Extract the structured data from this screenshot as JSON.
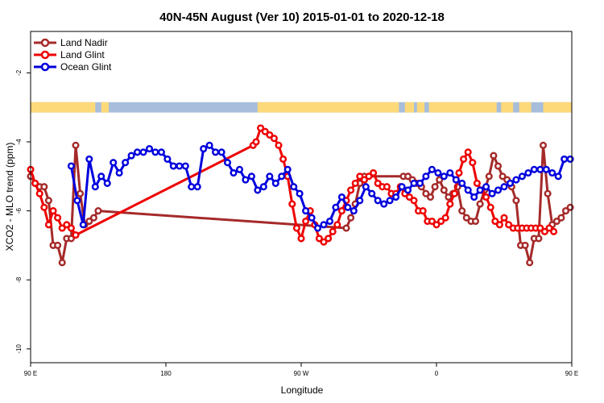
{
  "chart_data": {
    "type": "line",
    "title": "40N-45N August (Ver 10)   2015-01-01 to 2020-12-18",
    "xlabel": "Longitude",
    "ylabel": "XCO2 - MLO trend (ppm)",
    "xlim": [
      90,
      450
    ],
    "ylim": [
      -10.4,
      -0.8
    ],
    "x_ticks": [
      {
        "value": 90,
        "label": "90 E"
      },
      {
        "value": 180,
        "label": "180"
      },
      {
        "value": 270,
        "label": "90 W"
      },
      {
        "value": 360,
        "label": "0"
      },
      {
        "value": 450,
        "label": "90 E"
      },
      {
        "value": 540,
        "label": "180"
      }
    ],
    "y_ticks": [
      {
        "value": -2,
        "label": "-2"
      },
      {
        "value": -4,
        "label": "-4"
      },
      {
        "value": -6,
        "label": "-6"
      },
      {
        "value": -8,
        "label": "-8"
      },
      {
        "value": -10,
        "label": "-10"
      }
    ],
    "grid": false,
    "legend_position": "top-left",
    "land_mask_band": {
      "y_range": [
        -2.85,
        -3.15
      ],
      "ocean_color": "#a7bddb",
      "land_color": "#fdd97a",
      "land_x_intervals": [
        [
          90,
          133
        ],
        [
          137,
          142
        ],
        [
          241,
          335
        ],
        [
          339,
          345
        ],
        [
          347,
          352
        ],
        [
          355,
          400
        ],
        [
          403,
          411
        ],
        [
          415,
          423
        ],
        [
          431,
          451
        ]
      ]
    },
    "series": [
      {
        "name": "Land Nadir",
        "color": "#a52a2a",
        "x": [
          90,
          93,
          96,
          99,
          102,
          105,
          108,
          111,
          114,
          117,
          120,
          123,
          126,
          129,
          132,
          135,
          300,
          303,
          306,
          309,
          312,
          338,
          341,
          344,
          347,
          350,
          353,
          356,
          359,
          362,
          365,
          368,
          371,
          374,
          377,
          380,
          383,
          386,
          389,
          392,
          395,
          398,
          401,
          404,
          407,
          410,
          413,
          416,
          419,
          422,
          425,
          428,
          431,
          434,
          437,
          440,
          443,
          446,
          449
        ],
        "y": [
          -5.0,
          -5.2,
          -5.3,
          -5.3,
          -5.7,
          -7.0,
          -7.0,
          -7.5,
          -6.8,
          -6.8,
          -4.1,
          -5.5,
          -6.4,
          -6.3,
          -6.2,
          -6.0,
          -6.5,
          -6.2,
          -5.8,
          -5.2,
          -5.0,
          -5.0,
          -5.0,
          -5.1,
          -5.2,
          -5.3,
          -5.5,
          -5.6,
          -5.3,
          -5.1,
          -5.4,
          -5.6,
          -5.5,
          -5.3,
          -6.0,
          -6.2,
          -6.3,
          -6.3,
          -5.8,
          -5.4,
          -5.0,
          -4.4,
          -4.7,
          -5.0,
          -5.1,
          -5.3,
          -5.7,
          -7.0,
          -7.0,
          -7.5,
          -6.8,
          -6.8,
          -4.1,
          -5.5,
          -6.4,
          -6.3,
          -6.2,
          -6.0,
          -5.9
        ]
      },
      {
        "name": "Land Glint",
        "color": "#ee0000",
        "x": [
          90,
          93,
          96,
          99,
          102,
          105,
          108,
          111,
          114,
          117,
          120,
          238,
          240,
          243,
          246,
          249,
          252,
          255,
          258,
          261,
          264,
          267,
          270,
          273,
          276,
          279,
          282,
          285,
          288,
          291,
          294,
          297,
          300,
          303,
          306,
          309,
          312,
          315,
          318,
          321,
          324,
          327,
          330,
          333,
          336,
          339,
          342,
          345,
          348,
          351,
          354,
          357,
          360,
          363,
          366,
          369,
          372,
          375,
          378,
          381,
          384,
          387,
          390,
          393,
          396,
          399,
          402,
          405,
          408,
          411,
          414,
          417,
          420,
          423,
          426,
          429,
          432,
          435,
          438
        ],
        "y": [
          -4.8,
          -5.2,
          -5.5,
          -5.9,
          -6.4,
          -6.0,
          -6.2,
          -6.5,
          -6.4,
          -6.5,
          -6.7,
          -4.1,
          -4.0,
          -3.6,
          -3.7,
          -3.8,
          -3.9,
          -4.1,
          -4.5,
          -5.0,
          -5.8,
          -6.5,
          -6.8,
          -6.3,
          -6.0,
          -6.4,
          -6.8,
          -6.9,
          -6.8,
          -6.6,
          -6.4,
          -6.0,
          -5.7,
          -5.4,
          -5.2,
          -5.0,
          -5.1,
          -5.0,
          -4.9,
          -5.2,
          -5.3,
          -5.3,
          -5.5,
          -5.5,
          -5.3,
          -5.5,
          -5.6,
          -5.7,
          -6.0,
          -6.0,
          -6.3,
          -6.3,
          -6.4,
          -6.3,
          -6.2,
          -5.8,
          -5.5,
          -4.9,
          -4.5,
          -4.3,
          -4.6,
          -5.2,
          -5.4,
          -5.6,
          -5.9,
          -6.3,
          -6.4,
          -6.2,
          -6.4,
          -6.5,
          -6.5,
          -6.5,
          -6.5,
          -6.5,
          -6.5,
          -6.5,
          -6.6,
          -6.5,
          -6.6
        ]
      },
      {
        "name": "Ocean Glint",
        "color": "#0000dd",
        "x": [
          117,
          121,
          125,
          129,
          133,
          137,
          141,
          145,
          149,
          153,
          157,
          161,
          165,
          169,
          173,
          177,
          181,
          185,
          189,
          193,
          197,
          201,
          205,
          209,
          213,
          217,
          221,
          225,
          229,
          233,
          237,
          241,
          245,
          249,
          253,
          257,
          261,
          265,
          269,
          273,
          277,
          281,
          285,
          289,
          293,
          297,
          301,
          305,
          309,
          313,
          317,
          321,
          325,
          329,
          333,
          337,
          341,
          345,
          349,
          353,
          357,
          361,
          365,
          369,
          373,
          377,
          381,
          385,
          389,
          393,
          397,
          401,
          405,
          409,
          413,
          417,
          421,
          425,
          429,
          433,
          437,
          441,
          445,
          449
        ],
        "y": [
          -4.7,
          -5.7,
          -6.4,
          -4.5,
          -5.3,
          -5.0,
          -5.2,
          -4.6,
          -4.9,
          -4.6,
          -4.4,
          -4.3,
          -4.3,
          -4.2,
          -4.3,
          -4.3,
          -4.5,
          -4.7,
          -4.7,
          -4.7,
          -5.3,
          -5.3,
          -4.2,
          -4.1,
          -4.3,
          -4.3,
          -4.6,
          -4.9,
          -4.8,
          -5.1,
          -5.0,
          -5.4,
          -5.3,
          -5.0,
          -5.2,
          -5.0,
          -4.8,
          -5.3,
          -5.5,
          -6.0,
          -6.2,
          -6.5,
          -6.4,
          -6.3,
          -5.9,
          -5.6,
          -5.9,
          -6.0,
          -5.7,
          -5.3,
          -5.5,
          -5.7,
          -5.8,
          -5.7,
          -5.6,
          -5.3,
          -5.4,
          -5.2,
          -5.2,
          -5.0,
          -4.8,
          -4.9,
          -5.0,
          -4.9,
          -5.1,
          -5.2,
          -5.4,
          -5.6,
          -5.4,
          -5.3,
          -5.5,
          -5.4,
          -5.3,
          -5.2,
          -5.1,
          -5.0,
          -4.9,
          -4.8,
          -4.8,
          -4.8,
          -4.9,
          -5.0,
          -4.5,
          -4.5
        ]
      }
    ]
  }
}
